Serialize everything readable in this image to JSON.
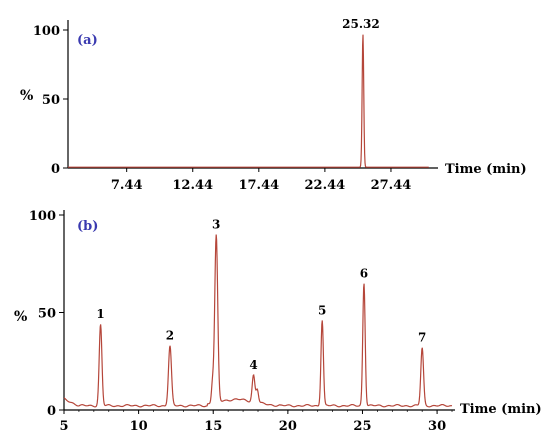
{
  "chart_data": [
    {
      "type": "line",
      "panel_label": "(a)",
      "ylabel": "%",
      "xlabel": "Time (min)",
      "xlim": [
        3.0,
        31.0
      ],
      "ylim": [
        0,
        100
      ],
      "xticks": [
        "7.44",
        "12.44",
        "17.44",
        "22.44",
        "27.44"
      ],
      "xtick_values": [
        7.44,
        12.44,
        17.44,
        22.44,
        27.44
      ],
      "yticks": [
        "0",
        "50",
        "100"
      ],
      "ytick_values": [
        0,
        50,
        100
      ],
      "peaks": [
        {
          "label": "25.32",
          "x": 25.32,
          "y": 97
        }
      ],
      "line_color": "#b5463a"
    },
    {
      "type": "line",
      "panel_label": "(b)",
      "ylabel": "%",
      "xlabel": "Time (min)",
      "xlim": [
        5,
        31.2
      ],
      "ylim": [
        0,
        100
      ],
      "xticks": [
        "5",
        "10",
        "15",
        "20",
        "25",
        "30"
      ],
      "xtick_values": [
        5,
        10,
        15,
        20,
        25,
        30
      ],
      "yticks": [
        "0",
        "50",
        "100"
      ],
      "ytick_values": [
        0,
        50,
        100
      ],
      "peaks": [
        {
          "label": "1",
          "x": 7.45,
          "y": 44
        },
        {
          "label": "2",
          "x": 12.1,
          "y": 33
        },
        {
          "label": "3",
          "x": 15.2,
          "y": 90
        },
        {
          "label": "4",
          "x": 17.7,
          "y": 18
        },
        {
          "label": "5",
          "x": 22.3,
          "y": 46
        },
        {
          "label": "6",
          "x": 25.1,
          "y": 65
        },
        {
          "label": "7",
          "x": 29.0,
          "y": 32
        }
      ],
      "line_color": "#b5463a"
    }
  ]
}
